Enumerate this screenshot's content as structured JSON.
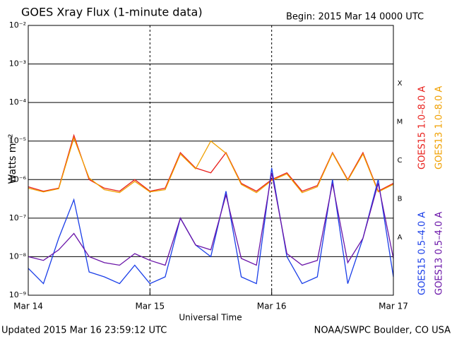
{
  "chart_data": {
    "type": "line",
    "title": "GOES Xray Flux (1-minute data)",
    "subtitle": "Begin:  2015 Mar 14 0000 UTC",
    "ylabel": "Watts m⁻²",
    "xlabel": "Universal Time",
    "footer_left": "Updated 2015 Mar 16 23:59:12 UTC",
    "footer_right": "NOAA/SWPC Boulder, CO USA",
    "log_y": true,
    "grid": true,
    "x": [
      0,
      3,
      6,
      9,
      12,
      15,
      18,
      21,
      24,
      27,
      30,
      33,
      36,
      39,
      42,
      45,
      48,
      51,
      54,
      57,
      60,
      63,
      66,
      69,
      72
    ],
    "xlim": [
      0,
      72
    ],
    "xticks": [
      {
        "value": 0,
        "label": "Mar 14"
      },
      {
        "value": 24,
        "label": "Mar 15"
      },
      {
        "value": 48,
        "label": "Mar 16"
      },
      {
        "value": 72,
        "label": "Mar 17"
      }
    ],
    "ylim": [
      1e-09,
      0.01
    ],
    "yticks": [
      {
        "value": 1e-09,
        "label": "10⁻⁹"
      },
      {
        "value": 1e-08,
        "label": "10⁻⁸"
      },
      {
        "value": 1e-07,
        "label": "10⁻⁷"
      },
      {
        "value": 1e-06,
        "label": "10⁻⁶"
      },
      {
        "value": 1e-05,
        "label": "10⁻⁵"
      },
      {
        "value": 0.0001,
        "label": "10⁻⁴"
      },
      {
        "value": 0.001,
        "label": "10⁻³"
      },
      {
        "value": 0.01,
        "label": "10⁻²"
      }
    ],
    "flare_classes": [
      {
        "label": "A",
        "value": 1e-08
      },
      {
        "label": "B",
        "value": 1e-07
      },
      {
        "label": "C",
        "value": 1e-06
      },
      {
        "label": "M",
        "value": 1e-05
      },
      {
        "label": "X",
        "value": 0.0001
      }
    ],
    "series": [
      {
        "name": "GOES15 1.0–8.0 A",
        "color": "#e8201c",
        "values": [
          6.5e-07,
          5e-07,
          6e-07,
          1.4e-05,
          1e-06,
          6e-07,
          5e-07,
          1e-06,
          5e-07,
          6e-07,
          5e-06,
          2e-06,
          1.5e-06,
          5e-06,
          8e-07,
          5e-07,
          1e-06,
          1.5e-06,
          5e-07,
          7e-07,
          5e-06,
          1e-06,
          5e-06,
          5e-07,
          8e-07
        ]
      },
      {
        "name": "GOES13 1.0–8.0 A",
        "color": "#f0a000",
        "values": [
          6e-07,
          4.8e-07,
          5.8e-07,
          1.2e-05,
          1.1e-06,
          5.5e-07,
          4.6e-07,
          9e-07,
          4.8e-07,
          5.5e-07,
          4.6e-06,
          1.9e-06,
          1e-05,
          4.8e-06,
          7.5e-07,
          4.6e-07,
          9.5e-07,
          1.4e-06,
          4.6e-07,
          6.5e-07,
          4.8e-06,
          9.5e-07,
          4.6e-06,
          4.8e-07,
          7.5e-07
        ]
      },
      {
        "name": "GOES15 0.5–4.0 A",
        "color": "#1a3ee8",
        "values": [
          5e-09,
          2e-09,
          3e-08,
          3e-07,
          4e-09,
          3e-09,
          2e-09,
          6e-09,
          2e-09,
          3e-09,
          1e-07,
          2e-08,
          1e-08,
          5e-07,
          3e-09,
          2e-09,
          2e-06,
          1e-08,
          2e-09,
          3e-09,
          1e-06,
          2e-09,
          3e-08,
          1e-06,
          3e-09
        ]
      },
      {
        "name": "GOES13 0.5–4.0 A",
        "color": "#6a14a8",
        "values": [
          1e-08,
          8e-09,
          1.5e-08,
          4e-08,
          1e-08,
          7e-09,
          6e-09,
          1.2e-08,
          8e-09,
          6e-09,
          1e-07,
          2e-08,
          1.5e-08,
          4e-07,
          9e-09,
          6e-09,
          1.5e-06,
          1.2e-08,
          6e-09,
          8e-09,
          8e-07,
          7e-09,
          3e-08,
          8e-07,
          9e-09
        ]
      }
    ]
  }
}
